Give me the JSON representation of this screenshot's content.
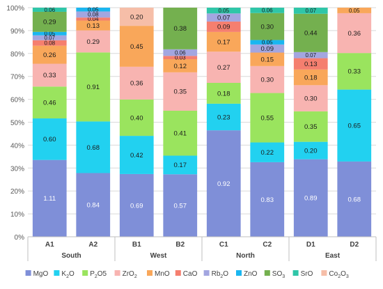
{
  "chart_data": {
    "type": "bar",
    "stacked": true,
    "percent": true,
    "categories": [
      "A1",
      "A2",
      "B1",
      "B2",
      "C1",
      "C2",
      "D1",
      "D2"
    ],
    "groups": [
      {
        "label": "South",
        "categories": [
          "A1",
          "A2"
        ]
      },
      {
        "label": "West",
        "categories": [
          "B1",
          "B2"
        ]
      },
      {
        "label": "North",
        "categories": [
          "C1",
          "C2"
        ]
      },
      {
        "label": "East",
        "categories": [
          "D1",
          "D2"
        ]
      }
    ],
    "ylim": [
      0,
      100
    ],
    "yticks": [
      "0%",
      "10%",
      "20%",
      "30%",
      "40%",
      "50%",
      "60%",
      "70%",
      "80%",
      "90%",
      "100%"
    ],
    "grid": true,
    "legend": "bottom",
    "series": [
      {
        "name": "MgO",
        "base": "MgO",
        "sub": "",
        "color": "#7f8fd8",
        "values": [
          1.11,
          0.84,
          0.69,
          0.57,
          0.92,
          0.83,
          0.89,
          0.68
        ]
      },
      {
        "name": "K2O",
        "base": "K",
        "sub": "2",
        "after": "O",
        "color": "#22d1f0",
        "values": [
          0.6,
          0.68,
          0.42,
          0.17,
          0.23,
          0.22,
          0.2,
          0.65
        ]
      },
      {
        "name": "P2O5",
        "base": "P",
        "sub": "2",
        "after": "O5",
        "color": "#9ae45e",
        "values": [
          0.46,
          0.91,
          0.4,
          0.41,
          0.18,
          0.55,
          0.35,
          0.33
        ]
      },
      {
        "name": "ZrO2",
        "base": "ZrO",
        "sub": "2",
        "after": "",
        "color": "#f8b4b1",
        "values": [
          0.33,
          0.29,
          0.36,
          0.35,
          0.27,
          0.3,
          0.3,
          0.36
        ]
      },
      {
        "name": "MnO",
        "base": "MnO",
        "sub": "",
        "color": "#f9a75a",
        "values": [
          0.26,
          0.13,
          0.45,
          0.12,
          0.17,
          0.15,
          0.18,
          0.05
        ]
      },
      {
        "name": "CaO",
        "base": "CaO",
        "sub": "",
        "color": "#f57f6f",
        "values": [
          0.08,
          0.04,
          null,
          0.03,
          0.09,
          null,
          0.13,
          null
        ]
      },
      {
        "name": "Rb2O",
        "base": "Rb",
        "sub": "2",
        "after": "O",
        "color": "#a3a6e0",
        "values": [
          0.07,
          0.08,
          null,
          0.06,
          0.07,
          0.09,
          0.07,
          null
        ]
      },
      {
        "name": "ZnO",
        "base": "ZnO",
        "sub": "",
        "color": "#1ab6f0",
        "values": [
          0.05,
          0.05,
          null,
          null,
          null,
          0.05,
          null,
          null
        ]
      },
      {
        "name": "SO3",
        "base": "SO",
        "sub": "3",
        "after": "",
        "color": "#74b04f",
        "values": [
          0.29,
          null,
          null,
          0.38,
          null,
          0.3,
          0.44,
          null
        ]
      },
      {
        "name": "SrO",
        "base": "SrO",
        "sub": "",
        "color": "#2fc6a8",
        "values": [
          0.06,
          null,
          null,
          null,
          0.05,
          0.06,
          0.07,
          null
        ]
      },
      {
        "name": "Co2O3",
        "base": "Co",
        "sub": "2",
        "after": "O",
        "sub2": "3",
        "color": "#f6bea8",
        "values": [
          null,
          null,
          0.2,
          null,
          null,
          null,
          null,
          null
        ]
      }
    ]
  }
}
